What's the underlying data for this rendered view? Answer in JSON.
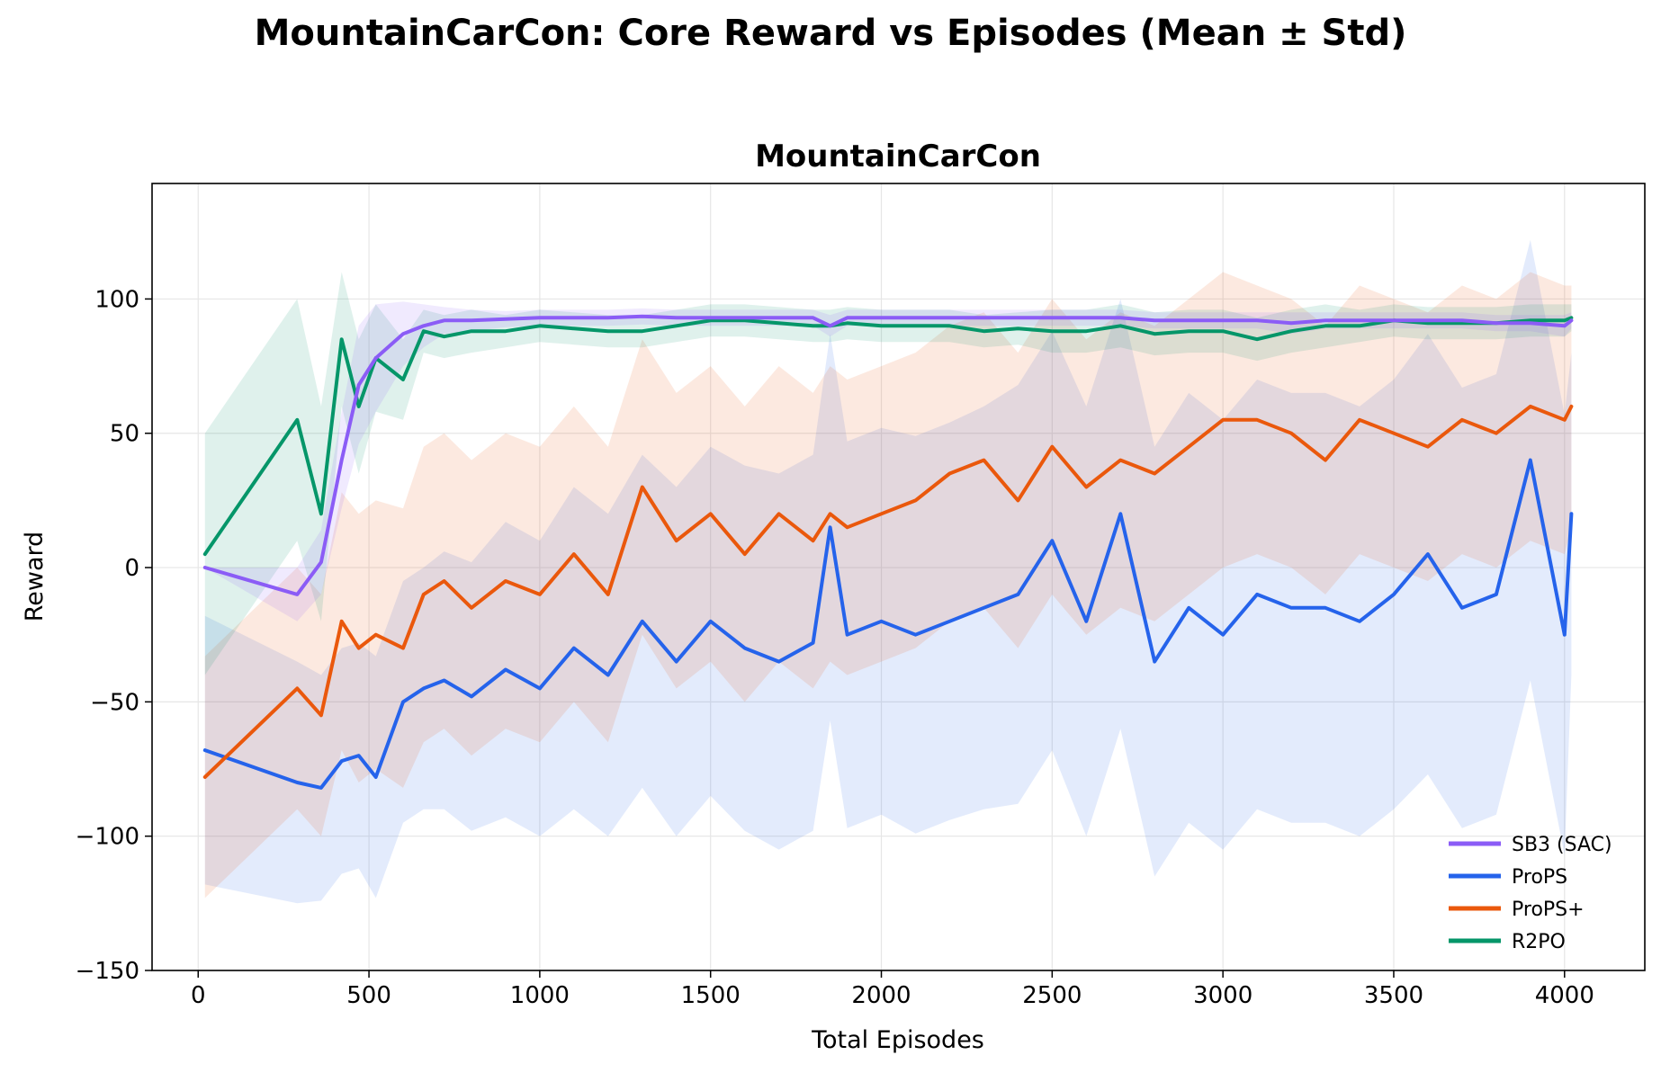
{
  "figure": {
    "suptitle": "MountainCarCon: Core Reward vs Episodes (Mean ± Std)"
  },
  "chart_data": {
    "type": "line",
    "title": "MountainCarCon",
    "xlabel": "Total Episodes",
    "ylabel": "Reward",
    "xlim": [
      -135,
      4235
    ],
    "ylim": [
      -150,
      143
    ],
    "xticks": [
      0,
      500,
      1000,
      1500,
      2000,
      2500,
      3000,
      3500,
      4000
    ],
    "yticks": [
      -150,
      -100,
      -50,
      0,
      50,
      100
    ],
    "ytick_labels": [
      "−150",
      "−100",
      "−50",
      "0",
      "50",
      "100"
    ],
    "grid": true,
    "legend_position": "lower-right",
    "x": [
      20,
      290,
      360,
      420,
      470,
      520,
      600,
      660,
      720,
      800,
      900,
      1000,
      1100,
      1200,
      1300,
      1400,
      1500,
      1600,
      1700,
      1800,
      1850,
      1900,
      2000,
      2100,
      2200,
      2300,
      2400,
      2500,
      2600,
      2700,
      2800,
      2900,
      3000,
      3100,
      3200,
      3300,
      3400,
      3500,
      3600,
      3700,
      3800,
      3900,
      4000,
      4020
    ],
    "series": [
      {
        "name": "SB3 (SAC)",
        "color": "#8B5CF6",
        "values": [
          0,
          -10,
          2,
          40,
          68,
          78,
          87,
          90,
          92,
          92,
          92.5,
          93,
          93,
          93,
          93.5,
          93,
          93,
          93,
          93,
          93,
          90,
          93,
          93,
          93,
          93,
          93,
          93,
          93,
          93,
          93,
          92,
          92,
          92,
          92,
          91,
          92,
          92,
          92,
          92,
          92,
          91,
          91,
          90,
          92
        ],
        "std": [
          0,
          10,
          12,
          18,
          22,
          20,
          12,
          8,
          5,
          4,
          3,
          3,
          3,
          3,
          3,
          3,
          3,
          3,
          3,
          3,
          4,
          3,
          3,
          3,
          3,
          3,
          3,
          3,
          3,
          3,
          3,
          3,
          3,
          3,
          4,
          3,
          3,
          3,
          3,
          3,
          3,
          3,
          4,
          3
        ]
      },
      {
        "name": "ProPS",
        "color": "#2563EB",
        "values": [
          -68,
          -80,
          -82,
          -72,
          -70,
          -78,
          -50,
          -45,
          -42,
          -48,
          -38,
          -45,
          -30,
          -40,
          -20,
          -35,
          -20,
          -30,
          -35,
          -28,
          15,
          -25,
          -20,
          -25,
          -20,
          -15,
          -10,
          10,
          -20,
          20,
          -35,
          -15,
          -25,
          -10,
          -15,
          -15,
          -20,
          -10,
          5,
          -15,
          -10,
          40,
          -25,
          20
        ],
        "std": [
          50,
          45,
          42,
          42,
          42,
          45,
          45,
          45,
          48,
          50,
          55,
          55,
          60,
          60,
          62,
          65,
          65,
          68,
          70,
          70,
          72,
          72,
          72,
          74,
          74,
          75,
          78,
          78,
          80,
          80,
          80,
          80,
          80,
          80,
          80,
          80,
          80,
          80,
          82,
          82,
          82,
          82,
          82,
          60
        ]
      },
      {
        "name": "ProPS+",
        "color": "#EA580C",
        "values": [
          -78,
          -45,
          -55,
          -20,
          -30,
          -25,
          -30,
          -10,
          -5,
          -15,
          -5,
          -10,
          5,
          -10,
          30,
          10,
          20,
          5,
          20,
          10,
          20,
          15,
          20,
          25,
          35,
          40,
          25,
          45,
          30,
          40,
          35,
          45,
          55,
          55,
          50,
          40,
          55,
          50,
          45,
          55,
          50,
          60,
          55,
          60
        ],
        "std": [
          45,
          45,
          45,
          48,
          50,
          50,
          52,
          55,
          55,
          55,
          55,
          55,
          55,
          55,
          55,
          55,
          55,
          55,
          55,
          55,
          55,
          55,
          55,
          55,
          55,
          55,
          55,
          55,
          55,
          55,
          55,
          55,
          55,
          50,
          50,
          50,
          50,
          50,
          50,
          50,
          50,
          50,
          50,
          45
        ]
      },
      {
        "name": "R2PO",
        "color": "#059669",
        "values": [
          5,
          55,
          20,
          85,
          60,
          78,
          70,
          88,
          86,
          88,
          88,
          90,
          89,
          88,
          88,
          90,
          92,
          92,
          91,
          90,
          90,
          91,
          90,
          90,
          90,
          88,
          89,
          88,
          88,
          90,
          87,
          88,
          88,
          85,
          88,
          90,
          90,
          92,
          91,
          91,
          91,
          92,
          92,
          93
        ],
        "std": [
          45,
          45,
          40,
          25,
          25,
          20,
          15,
          8,
          8,
          8,
          6,
          6,
          6,
          6,
          6,
          6,
          6,
          6,
          6,
          6,
          6,
          6,
          6,
          6,
          6,
          6,
          6,
          8,
          8,
          8,
          8,
          8,
          8,
          8,
          8,
          8,
          6,
          6,
          6,
          6,
          6,
          6,
          6,
          5
        ]
      }
    ]
  }
}
